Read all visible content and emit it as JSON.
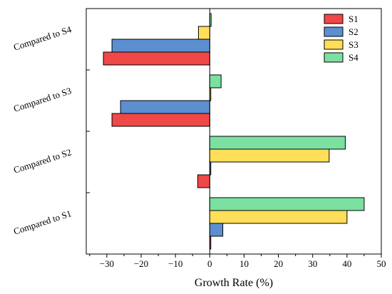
{
  "chart_data": {
    "type": "bar",
    "orientation": "horizontal",
    "categories": [
      "Compared to S1",
      "Compared to S2",
      "Compared to S3",
      "Compared to S4"
    ],
    "series": [
      {
        "name": "S1",
        "color": "#f04747",
        "values": [
          0.3,
          -3.5,
          -28.5,
          -31.0
        ]
      },
      {
        "name": "S2",
        "color": "#5b8fd0",
        "values": [
          3.8,
          0.3,
          -26.0,
          -28.5
        ]
      },
      {
        "name": "S3",
        "color": "#ffde59",
        "values": [
          40.0,
          34.8,
          0.3,
          -3.3
        ]
      },
      {
        "name": "S4",
        "color": "#7be0a0",
        "values": [
          45.0,
          39.5,
          3.3,
          0.4
        ]
      }
    ],
    "xlabel": "Growth Rate (%)",
    "ylabel": "",
    "title": "",
    "xlim": [
      -36,
      50
    ],
    "xticks": [
      -30,
      -20,
      -10,
      0,
      10,
      20,
      30,
      40,
      50
    ],
    "xtick_labels": [
      "−30",
      "−20",
      "−10",
      "0",
      "10",
      "20",
      "30",
      "40",
      "50"
    ],
    "grid": false,
    "legend_position": "top-right",
    "zero_line": true
  }
}
